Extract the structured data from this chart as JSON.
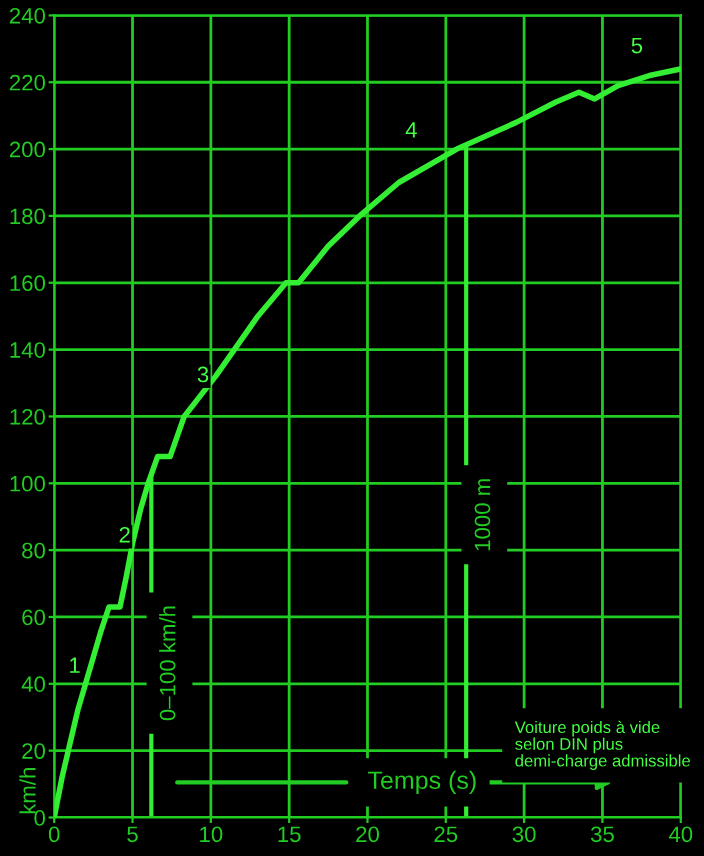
{
  "chart_data": {
    "type": "line",
    "xlabel": "Temps (s)",
    "ylabel": "km/h",
    "x": [
      0,
      0.5,
      1,
      1.5,
      2,
      2.5,
      3,
      3.5,
      4.2,
      4.6,
      5,
      5.5,
      6,
      6.6,
      7.4,
      8.3,
      9.3,
      10.3,
      11.5,
      13,
      14.8,
      15.6,
      17.5,
      19.5,
      22,
      25.7,
      29.5,
      32,
      33.5,
      34.5,
      36,
      38,
      40
    ],
    "series": [
      {
        "color": "#33ee33",
        "values": [
          0,
          12,
          22,
          32,
          40,
          48,
          56,
          63,
          63,
          72,
          82,
          92,
          100,
          108,
          108,
          120,
          126,
          132,
          140,
          150,
          160,
          160,
          171,
          180,
          190,
          200,
          208,
          214,
          217,
          215,
          219,
          222,
          224
        ]
      }
    ],
    "xlim": [
      0,
      40
    ],
    "ylim": [
      0,
      240
    ],
    "xticks": [
      0,
      5,
      10,
      15,
      20,
      25,
      30,
      35,
      40
    ],
    "yticks": [
      0,
      20,
      40,
      60,
      80,
      100,
      120,
      140,
      160,
      180,
      200,
      220,
      240
    ],
    "grid": true,
    "marker": "none",
    "line_style": "solid",
    "ref_lines": [
      {
        "axis": "x",
        "value": 6.2,
        "label": "0–100 km/h",
        "color": "#33ee33"
      },
      {
        "axis": "x",
        "value": 26.3,
        "label": "1000 m",
        "color": "#33ee33"
      }
    ],
    "annotations": [
      {
        "text": "1",
        "x": 1.3,
        "y": 45
      },
      {
        "text": "2",
        "x": 4.5,
        "y": 84
      },
      {
        "text": "3",
        "x": 9.5,
        "y": 132
      },
      "4",
      "5",
      "Voiture poids à vide\nselon DIN plus\ndemi-charge admissible"
    ]
  }
}
